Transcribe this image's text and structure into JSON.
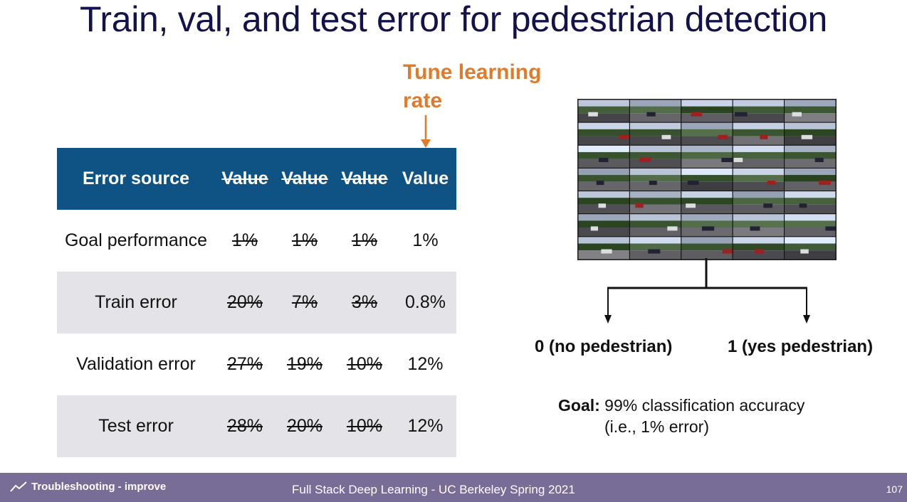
{
  "slide": {
    "title": "Train, val, and test error for pedestrian detection",
    "callout": "Tune learning rate"
  },
  "table": {
    "headers": [
      "Error source",
      "Value",
      "Value",
      "Value",
      "Value"
    ],
    "rows": [
      {
        "label": "Goal performance",
        "values": [
          "1%",
          "1%",
          "1%",
          "1%"
        ]
      },
      {
        "label": "Train error",
        "values": [
          "20%",
          "7%",
          "3%",
          "0.8%"
        ]
      },
      {
        "label": "Validation error",
        "values": [
          "27%",
          "19%",
          "10%",
          "12%"
        ]
      },
      {
        "label": "Test error",
        "values": [
          "28%",
          "20%",
          "10%",
          "12%"
        ]
      }
    ],
    "header_color": "#0e5384",
    "shade_color": "#e4e4e8"
  },
  "diagram": {
    "class0": "0 (no pedestrian)",
    "class1": "1 (yes pedestrian)"
  },
  "goal": {
    "label": "Goal:",
    "text": "99% classification accuracy",
    "sub": "(i.e., 1% error)"
  },
  "footer": {
    "left_icon": "trend-line-icon",
    "left": "Troubleshooting - improve",
    "center": "Full Stack Deep Learning - UC Berkeley Spring 2021",
    "page": "107",
    "color": "#786d97"
  },
  "colors": {
    "title": "#14124a",
    "accent": "#e07b2b"
  }
}
